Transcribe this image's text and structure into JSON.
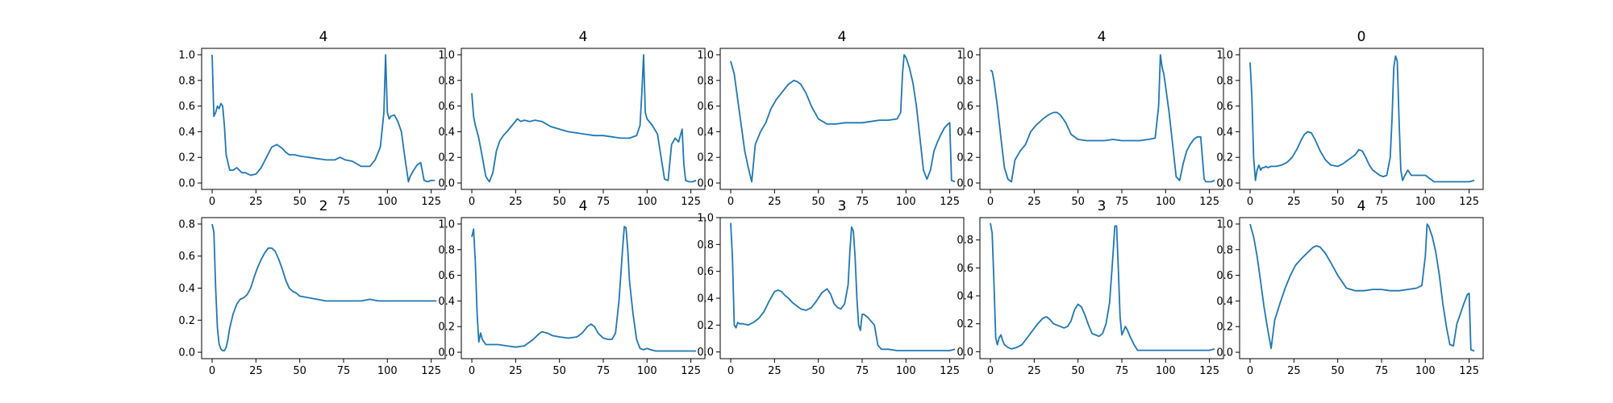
{
  "chart_data": [
    {
      "type": "line",
      "title": "4",
      "xlim": [
        -6,
        133
      ],
      "ylim": [
        -0.05,
        1.05
      ],
      "xticks": [
        0,
        25,
        50,
        75,
        100,
        125
      ],
      "yticks": [
        0.0,
        0.2,
        0.4,
        0.6,
        0.8,
        1.0
      ],
      "x": [
        0,
        1,
        2,
        3,
        4,
        5,
        6,
        7,
        8,
        10,
        12,
        14,
        17,
        19,
        22,
        25,
        28,
        31,
        34,
        37,
        40,
        42,
        44,
        47,
        50,
        55,
        60,
        65,
        70,
        73,
        76,
        80,
        85,
        90,
        93,
        96,
        98,
        99,
        100,
        101,
        102,
        104,
        106,
        108,
        110,
        112,
        113,
        115,
        117,
        119,
        121,
        123,
        125,
        127
      ],
      "values": [
        1.0,
        0.52,
        0.55,
        0.6,
        0.58,
        0.62,
        0.6,
        0.45,
        0.22,
        0.1,
        0.1,
        0.12,
        0.08,
        0.08,
        0.06,
        0.07,
        0.12,
        0.2,
        0.28,
        0.3,
        0.27,
        0.24,
        0.22,
        0.22,
        0.21,
        0.2,
        0.19,
        0.18,
        0.18,
        0.2,
        0.18,
        0.17,
        0.13,
        0.13,
        0.18,
        0.28,
        0.55,
        1.0,
        0.55,
        0.5,
        0.52,
        0.53,
        0.48,
        0.4,
        0.2,
        0.01,
        0.05,
        0.1,
        0.14,
        0.16,
        0.02,
        0.01,
        0.02,
        0.02
      ]
    },
    {
      "type": "line",
      "title": "4",
      "xlim": [
        -6,
        133
      ],
      "ylim": [
        -0.05,
        1.05
      ],
      "xticks": [
        0,
        25,
        50,
        75,
        100,
        125
      ],
      "yticks": [
        0.0,
        0.2,
        0.4,
        0.6,
        0.8,
        1.0
      ],
      "x": [
        0,
        1,
        2,
        4,
        6,
        8,
        10,
        12,
        14,
        16,
        18,
        20,
        23,
        26,
        28,
        30,
        33,
        36,
        40,
        45,
        50,
        55,
        60,
        65,
        70,
        75,
        80,
        85,
        90,
        94,
        96,
        97,
        98,
        99,
        100,
        103,
        106,
        108,
        110,
        112,
        114,
        116,
        118,
        120,
        121,
        122,
        124,
        126,
        128
      ],
      "values": [
        0.7,
        0.52,
        0.45,
        0.35,
        0.2,
        0.05,
        0.01,
        0.08,
        0.25,
        0.33,
        0.37,
        0.4,
        0.45,
        0.5,
        0.48,
        0.49,
        0.48,
        0.49,
        0.48,
        0.44,
        0.42,
        0.4,
        0.39,
        0.38,
        0.37,
        0.37,
        0.36,
        0.35,
        0.35,
        0.37,
        0.45,
        0.7,
        1.0,
        0.55,
        0.5,
        0.45,
        0.38,
        0.2,
        0.03,
        0.02,
        0.3,
        0.35,
        0.32,
        0.42,
        0.15,
        0.02,
        0.01,
        0.01,
        0.02
      ]
    },
    {
      "type": "line",
      "title": "4",
      "xlim": [
        -6,
        133
      ],
      "ylim": [
        -0.05,
        1.05
      ],
      "xticks": [
        0,
        25,
        50,
        75,
        100,
        125
      ],
      "yticks": [
        0.0,
        0.2,
        0.4,
        0.6,
        0.8,
        1.0
      ],
      "x": [
        0,
        2,
        4,
        6,
        8,
        10,
        12,
        14,
        17,
        20,
        23,
        26,
        30,
        33,
        36,
        38,
        40,
        43,
        46,
        50,
        55,
        60,
        65,
        70,
        75,
        80,
        85,
        90,
        95,
        97,
        98,
        99,
        100,
        102,
        104,
        106,
        108,
        110,
        112,
        114,
        116,
        118,
        120,
        122,
        124,
        125,
        126,
        128
      ],
      "values": [
        0.95,
        0.85,
        0.65,
        0.45,
        0.25,
        0.12,
        0.01,
        0.3,
        0.4,
        0.47,
        0.58,
        0.65,
        0.72,
        0.77,
        0.8,
        0.79,
        0.77,
        0.7,
        0.6,
        0.5,
        0.46,
        0.46,
        0.47,
        0.47,
        0.47,
        0.48,
        0.49,
        0.49,
        0.5,
        0.55,
        0.85,
        1.0,
        0.98,
        0.9,
        0.78,
        0.6,
        0.35,
        0.1,
        0.03,
        0.1,
        0.25,
        0.32,
        0.38,
        0.43,
        0.46,
        0.47,
        0.02,
        0.01
      ]
    },
    {
      "type": "line",
      "title": "4",
      "xlim": [
        -6,
        133
      ],
      "ylim": [
        -0.05,
        1.05
      ],
      "xticks": [
        0,
        25,
        50,
        75,
        100,
        125
      ],
      "yticks": [
        0.0,
        0.2,
        0.4,
        0.6,
        0.8,
        1.0
      ],
      "x": [
        0,
        1,
        2,
        4,
        6,
        8,
        10,
        12,
        14,
        17,
        20,
        23,
        26,
        30,
        33,
        36,
        38,
        40,
        43,
        46,
        50,
        55,
        60,
        65,
        70,
        75,
        80,
        85,
        90,
        94,
        96,
        97,
        98,
        99,
        100,
        102,
        104,
        106,
        108,
        110,
        112,
        114,
        116,
        118,
        120,
        122,
        123,
        124,
        126,
        128
      ],
      "values": [
        0.88,
        0.87,
        0.8,
        0.6,
        0.35,
        0.12,
        0.03,
        0.01,
        0.18,
        0.25,
        0.3,
        0.4,
        0.45,
        0.5,
        0.53,
        0.55,
        0.55,
        0.53,
        0.47,
        0.38,
        0.34,
        0.33,
        0.33,
        0.33,
        0.34,
        0.33,
        0.33,
        0.33,
        0.34,
        0.35,
        0.6,
        1.0,
        0.9,
        0.85,
        0.75,
        0.55,
        0.3,
        0.05,
        0.02,
        0.15,
        0.25,
        0.3,
        0.34,
        0.36,
        0.36,
        0.03,
        0.01,
        0.01,
        0.01,
        0.02
      ]
    },
    {
      "type": "line",
      "title": "0",
      "xlim": [
        -6,
        133
      ],
      "ylim": [
        -0.05,
        1.05
      ],
      "xticks": [
        0,
        25,
        50,
        75,
        100,
        125
      ],
      "yticks": [
        0.0,
        0.2,
        0.4,
        0.6,
        0.8,
        1.0
      ],
      "x": [
        0,
        1,
        2,
        3,
        4,
        5,
        6,
        7,
        8,
        9,
        10,
        12,
        15,
        18,
        21,
        24,
        27,
        29,
        31,
        33,
        35,
        37,
        40,
        43,
        46,
        50,
        53,
        56,
        58,
        60,
        62,
        64,
        66,
        68,
        70,
        72,
        74,
        76,
        78,
        80,
        81,
        82,
        83,
        84,
        85,
        86,
        87,
        88,
        90,
        92,
        95,
        98,
        100,
        105,
        110,
        115,
        120,
        125,
        128
      ],
      "values": [
        0.94,
        0.68,
        0.2,
        0.02,
        0.1,
        0.14,
        0.1,
        0.12,
        0.12,
        0.13,
        0.12,
        0.13,
        0.13,
        0.14,
        0.16,
        0.2,
        0.27,
        0.33,
        0.38,
        0.4,
        0.39,
        0.34,
        0.25,
        0.18,
        0.14,
        0.13,
        0.15,
        0.18,
        0.2,
        0.22,
        0.26,
        0.25,
        0.2,
        0.14,
        0.1,
        0.08,
        0.06,
        0.05,
        0.06,
        0.2,
        0.5,
        0.9,
        0.99,
        0.95,
        0.5,
        0.1,
        0.02,
        0.05,
        0.1,
        0.06,
        0.06,
        0.06,
        0.06,
        0.01,
        0.01,
        0.01,
        0.01,
        0.01,
        0.02
      ]
    },
    {
      "type": "line",
      "title": "2",
      "xlim": [
        -6,
        133
      ],
      "ylim": [
        -0.04,
        0.84
      ],
      "xticks": [
        0,
        25,
        50,
        75,
        100,
        125
      ],
      "yticks": [
        0.0,
        0.2,
        0.4,
        0.6,
        0.8
      ],
      "x": [
        0,
        1,
        2,
        3,
        4,
        5,
        6,
        7,
        8,
        9,
        10,
        12,
        14,
        16,
        18,
        20,
        22,
        24,
        26,
        28,
        30,
        32,
        34,
        36,
        38,
        40,
        42,
        44,
        46,
        48,
        50,
        55,
        60,
        65,
        70,
        75,
        80,
        85,
        90,
        95,
        100,
        105,
        110,
        115,
        120,
        125,
        128
      ],
      "values": [
        0.8,
        0.75,
        0.4,
        0.15,
        0.05,
        0.02,
        0.01,
        0.01,
        0.03,
        0.08,
        0.15,
        0.24,
        0.3,
        0.33,
        0.34,
        0.36,
        0.4,
        0.47,
        0.53,
        0.58,
        0.62,
        0.65,
        0.65,
        0.63,
        0.58,
        0.52,
        0.45,
        0.4,
        0.38,
        0.37,
        0.35,
        0.34,
        0.33,
        0.32,
        0.32,
        0.32,
        0.32,
        0.32,
        0.33,
        0.32,
        0.32,
        0.32,
        0.32,
        0.32,
        0.32,
        0.32,
        0.32
      ]
    },
    {
      "type": "line",
      "title": "4",
      "xlim": [
        -6,
        133
      ],
      "ylim": [
        -0.05,
        1.05
      ],
      "xticks": [
        0,
        25,
        50,
        75,
        100,
        125
      ],
      "yticks": [
        0.0,
        0.2,
        0.4,
        0.6,
        0.8,
        1.0
      ],
      "x": [
        0,
        1,
        2,
        3,
        4,
        5,
        6,
        7,
        8,
        10,
        12,
        15,
        20,
        25,
        30,
        35,
        38,
        40,
        43,
        46,
        50,
        55,
        60,
        63,
        66,
        68,
        70,
        72,
        75,
        78,
        80,
        82,
        84,
        86,
        87,
        88,
        89,
        90,
        92,
        94,
        96,
        98,
        100,
        102,
        105,
        110,
        115,
        120,
        125,
        128
      ],
      "values": [
        0.9,
        0.96,
        0.7,
        0.3,
        0.08,
        0.15,
        0.1,
        0.08,
        0.06,
        0.06,
        0.06,
        0.06,
        0.05,
        0.04,
        0.05,
        0.1,
        0.14,
        0.16,
        0.15,
        0.13,
        0.12,
        0.11,
        0.12,
        0.15,
        0.2,
        0.22,
        0.2,
        0.15,
        0.11,
        0.1,
        0.1,
        0.15,
        0.4,
        0.8,
        0.98,
        0.97,
        0.8,
        0.55,
        0.3,
        0.1,
        0.03,
        0.02,
        0.03,
        0.02,
        0.01,
        0.01,
        0.01,
        0.01,
        0.01,
        0.01
      ]
    },
    {
      "type": "line",
      "title": "3",
      "xlim": [
        -6,
        133
      ],
      "ylim": [
        -0.05,
        1.0
      ],
      "xticks": [
        0,
        25,
        50,
        75,
        100,
        125
      ],
      "yticks": [
        0.0,
        0.2,
        0.4,
        0.6,
        0.8,
        1.0
      ],
      "x": [
        0,
        1,
        2,
        3,
        4,
        5,
        7,
        10,
        13,
        16,
        19,
        22,
        25,
        27,
        29,
        31,
        33,
        35,
        37,
        40,
        43,
        46,
        49,
        52,
        55,
        57,
        59,
        61,
        63,
        65,
        67,
        68,
        69,
        70,
        71,
        72,
        73,
        74,
        75,
        76,
        78,
        80,
        82,
        84,
        86,
        90,
        95,
        100,
        105,
        110,
        115,
        120,
        125,
        128
      ],
      "values": [
        0.96,
        0.7,
        0.2,
        0.18,
        0.22,
        0.21,
        0.21,
        0.2,
        0.22,
        0.25,
        0.3,
        0.38,
        0.45,
        0.46,
        0.45,
        0.42,
        0.4,
        0.37,
        0.35,
        0.32,
        0.31,
        0.33,
        0.38,
        0.44,
        0.47,
        0.43,
        0.36,
        0.33,
        0.32,
        0.36,
        0.5,
        0.75,
        0.93,
        0.9,
        0.7,
        0.4,
        0.2,
        0.16,
        0.28,
        0.28,
        0.26,
        0.23,
        0.2,
        0.05,
        0.02,
        0.02,
        0.01,
        0.01,
        0.01,
        0.01,
        0.01,
        0.01,
        0.01,
        0.02
      ]
    },
    {
      "type": "line",
      "title": "3",
      "xlim": [
        -6,
        133
      ],
      "ylim": [
        -0.05,
        0.96
      ],
      "xticks": [
        0,
        25,
        50,
        75,
        100,
        125
      ],
      "yticks": [
        0.0,
        0.2,
        0.4,
        0.6,
        0.8
      ],
      "x": [
        0,
        1,
        2,
        3,
        4,
        5,
        6,
        7,
        8,
        10,
        12,
        15,
        18,
        21,
        24,
        27,
        30,
        32,
        34,
        36,
        38,
        40,
        42,
        44,
        46,
        48,
        50,
        52,
        54,
        56,
        58,
        60,
        62,
        64,
        66,
        68,
        70,
        71,
        72,
        73,
        74,
        75,
        76,
        77,
        78,
        80,
        82,
        84,
        86,
        88,
        90,
        95,
        100,
        105,
        110,
        115,
        120,
        125,
        128
      ],
      "values": [
        0.92,
        0.85,
        0.5,
        0.1,
        0.05,
        0.1,
        0.12,
        0.08,
        0.05,
        0.03,
        0.02,
        0.03,
        0.05,
        0.1,
        0.15,
        0.2,
        0.24,
        0.25,
        0.23,
        0.2,
        0.19,
        0.18,
        0.17,
        0.18,
        0.22,
        0.3,
        0.34,
        0.32,
        0.26,
        0.19,
        0.13,
        0.12,
        0.11,
        0.13,
        0.2,
        0.35,
        0.7,
        0.9,
        0.9,
        0.6,
        0.25,
        0.12,
        0.15,
        0.18,
        0.16,
        0.1,
        0.05,
        0.01,
        0.01,
        0.01,
        0.01,
        0.01,
        0.01,
        0.01,
        0.01,
        0.01,
        0.01,
        0.01,
        0.02
      ]
    },
    {
      "type": "line",
      "title": "4",
      "xlim": [
        -6,
        133
      ],
      "ylim": [
        -0.05,
        1.05
      ],
      "xticks": [
        0,
        25,
        50,
        75,
        100,
        125
      ],
      "yticks": [
        0.0,
        0.2,
        0.4,
        0.6,
        0.8,
        1.0
      ],
      "x": [
        0,
        2,
        4,
        6,
        8,
        10,
        12,
        14,
        17,
        20,
        23,
        26,
        30,
        33,
        36,
        38,
        40,
        43,
        46,
        50,
        55,
        60,
        65,
        70,
        75,
        80,
        85,
        90,
        95,
        98,
        100,
        101,
        102,
        104,
        106,
        108,
        110,
        112,
        114,
        116,
        118,
        120,
        122,
        124,
        125,
        126,
        128
      ],
      "values": [
        1.0,
        0.9,
        0.75,
        0.55,
        0.35,
        0.18,
        0.03,
        0.25,
        0.38,
        0.5,
        0.6,
        0.68,
        0.74,
        0.78,
        0.82,
        0.83,
        0.82,
        0.77,
        0.7,
        0.6,
        0.5,
        0.48,
        0.48,
        0.49,
        0.49,
        0.48,
        0.48,
        0.49,
        0.5,
        0.52,
        0.75,
        1.0,
        0.98,
        0.9,
        0.78,
        0.6,
        0.38,
        0.2,
        0.06,
        0.05,
        0.22,
        0.3,
        0.38,
        0.45,
        0.46,
        0.02,
        0.01
      ]
    }
  ]
}
